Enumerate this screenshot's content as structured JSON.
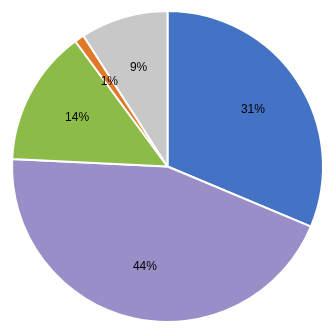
{
  "chart_data": {
    "type": "pie",
    "values": [
      31,
      44,
      14,
      1,
      9
    ],
    "value_labels": [
      "31%",
      "44%",
      "14%",
      "1%",
      "9%"
    ],
    "colors": [
      "#4472C4",
      "#9B8EC8",
      "#8CBB47",
      "#E07828",
      "#C8C8C8"
    ],
    "data_labels": true
  }
}
